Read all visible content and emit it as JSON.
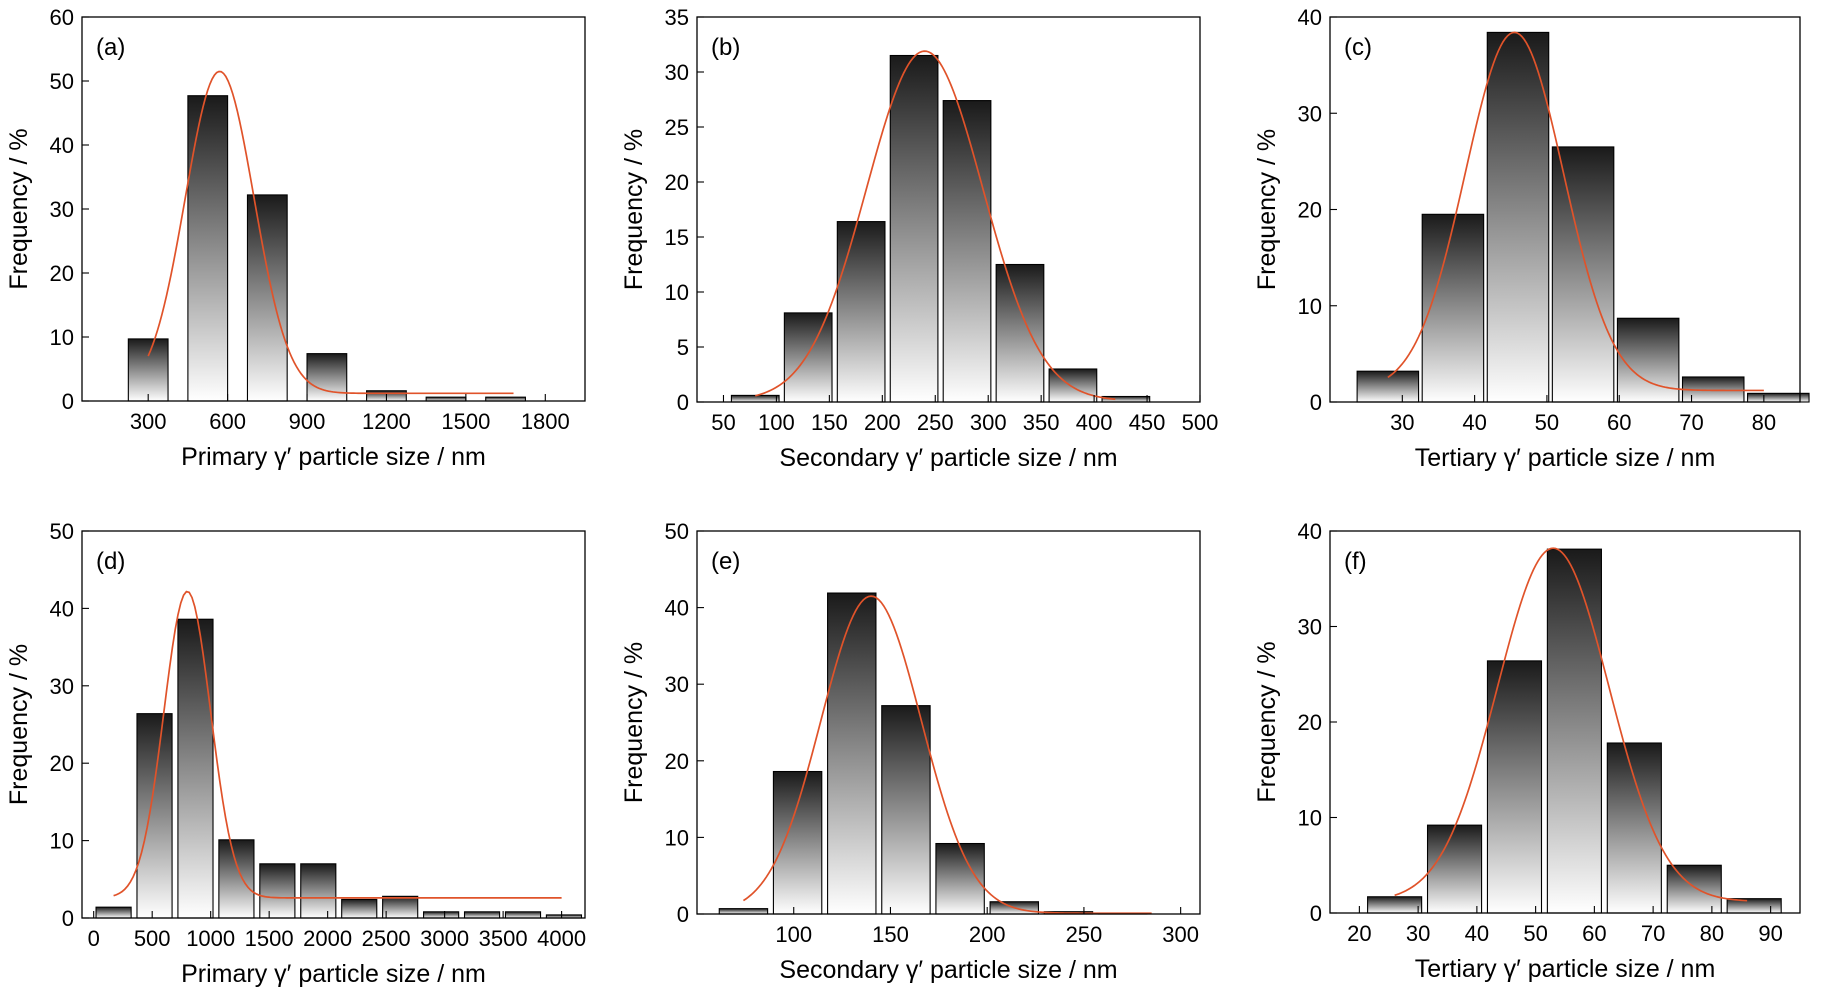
{
  "figure": {
    "colors": {
      "fit_line": "#e0532a",
      "bar_top": "#1a1a1a",
      "bar_bottom": "#ffffff"
    }
  },
  "chart_data": [
    {
      "panel": "(a)",
      "type": "bar",
      "xlabel": "Primary γ′ particle size / nm",
      "ylabel": "Frequency / %",
      "xlim": [
        50,
        1950
      ],
      "ylim": [
        0,
        60
      ],
      "xticks": [
        300,
        600,
        900,
        1200,
        1500,
        1800
      ],
      "yticks": [
        0,
        10,
        20,
        30,
        40,
        50,
        60
      ],
      "bar_width": 150,
      "x": [
        300,
        525,
        750,
        975,
        1200,
        1425,
        1650
      ],
      "values": [
        9.7,
        47.7,
        32.2,
        7.4,
        1.6,
        0.6,
        0.6
      ],
      "fit": {
        "center": 570,
        "sigma": 130,
        "amplitude": 50.3,
        "offset": 1.2,
        "x_range": [
          300,
          1680
        ]
      }
    },
    {
      "panel": "(b)",
      "type": "bar",
      "xlabel": "Secondary γ′ particle size / nm",
      "ylabel": "Frequency / %",
      "xlim": [
        25,
        500
      ],
      "ylim": [
        0,
        35
      ],
      "xticks": [
        50,
        100,
        150,
        200,
        250,
        300,
        350,
        400,
        450,
        500
      ],
      "yticks": [
        0,
        5,
        10,
        15,
        20,
        25,
        30,
        35
      ],
      "bar_width": 45,
      "x": [
        80,
        130,
        180,
        230,
        280,
        330,
        380,
        430
      ],
      "values": [
        0.6,
        8.1,
        16.4,
        31.5,
        27.4,
        12.5,
        3.0,
        0.5
      ],
      "fit": {
        "center": 240,
        "sigma": 55,
        "amplitude": 31.8,
        "offset": 0.1,
        "x_range": [
          80,
          420
        ]
      }
    },
    {
      "panel": "(c)",
      "type": "bar",
      "xlabel": "Tertiary γ′ particle size / nm",
      "ylabel": "Frequency / %",
      "xlim": [
        20,
        85
      ],
      "ylim": [
        0,
        40
      ],
      "xticks": [
        30,
        40,
        50,
        60,
        70,
        80
      ],
      "yticks": [
        0,
        10,
        20,
        30,
        40
      ],
      "bar_width": 8.5,
      "x": [
        28,
        37,
        46,
        55,
        64,
        73,
        82
      ],
      "values": [
        3.2,
        19.5,
        38.4,
        26.5,
        8.7,
        2.6,
        0.9
      ],
      "fit": {
        "center": 45.5,
        "sigma": 6.8,
        "amplitude": 37.2,
        "offset": 1.2,
        "x_range": [
          28,
          80
        ]
      }
    },
    {
      "panel": "(d)",
      "type": "bar",
      "xlabel": "Primary γ′ particle size / nm",
      "ylabel": "Frequency / %",
      "xlim": [
        -100,
        4200
      ],
      "ylim": [
        0,
        50
      ],
      "xticks": [
        0,
        500,
        1000,
        1500,
        2000,
        2500,
        3000,
        3500,
        4000
      ],
      "yticks": [
        0,
        10,
        20,
        30,
        40,
        50
      ],
      "bar_width": 300,
      "x": [
        170,
        520,
        870,
        1220,
        1570,
        1920,
        2270,
        2620,
        2970,
        3320,
        3670,
        4020
      ],
      "values": [
        1.4,
        26.4,
        38.6,
        10.1,
        7.0,
        7.0,
        2.4,
        2.8,
        0.8,
        0.8,
        0.8,
        0.4
      ],
      "fit": {
        "center": 800,
        "sigma": 200,
        "amplitude": 39.6,
        "offset": 2.6,
        "x_range": [
          170,
          4000
        ]
      }
    },
    {
      "panel": "(e)",
      "type": "bar",
      "xlabel": "Secondary γ′ particle size / nm",
      "ylabel": "Frequency / %",
      "xlim": [
        50,
        310
      ],
      "ylim": [
        0,
        50
      ],
      "xticks": [
        100,
        150,
        200,
        250,
        300
      ],
      "yticks": [
        0,
        10,
        20,
        30,
        40,
        50
      ],
      "bar_width": 25,
      "x": [
        74,
        102,
        130,
        158,
        186,
        214,
        242,
        270,
        298
      ],
      "values": [
        0.7,
        18.6,
        41.9,
        27.2,
        9.2,
        1.6,
        0.3,
        0.1,
        0.0
      ],
      "fit": {
        "center": 140,
        "sigma": 26,
        "amplitude": 41.4,
        "offset": 0.1,
        "x_range": [
          74,
          285
        ]
      }
    },
    {
      "panel": "(f)",
      "type": "bar",
      "xlabel": "Tertiary γ′ particle size / nm",
      "ylabel": "Frequency / %",
      "xlim": [
        15,
        95
      ],
      "ylim": [
        0,
        40
      ],
      "xticks": [
        20,
        30,
        40,
        50,
        60,
        70,
        80,
        90
      ],
      "yticks": [
        0,
        10,
        20,
        30,
        40
      ],
      "bar_width": 9.2,
      "x": [
        26,
        36.2,
        46.4,
        56.6,
        66.8,
        77,
        87.2
      ],
      "values": [
        1.7,
        9.2,
        26.4,
        38.1,
        17.8,
        5.0,
        1.5
      ],
      "fit": {
        "center": 53,
        "sigma": 9.5,
        "amplitude": 37.0,
        "offset": 1.2,
        "x_range": [
          26,
          86
        ]
      }
    }
  ]
}
